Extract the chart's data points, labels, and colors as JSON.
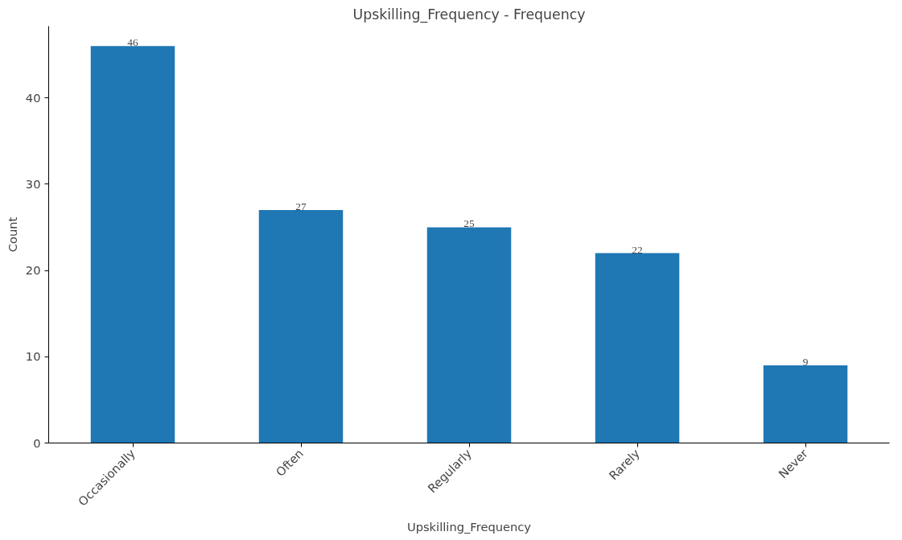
{
  "chart_data": {
    "type": "bar",
    "title": "Upskilling_Frequency - Frequency",
    "xlabel": "Upskilling_Frequency",
    "ylabel": "Count",
    "categories": [
      "Occasionally",
      "Often",
      "Regularly",
      "Rarely",
      "Never"
    ],
    "values": [
      46,
      27,
      25,
      22,
      9
    ],
    "color": "#1f77b4",
    "ylim": [
      0,
      48.3
    ],
    "yticks": [
      0,
      10,
      20,
      30,
      40
    ],
    "grid": false,
    "data_labels": true
  }
}
